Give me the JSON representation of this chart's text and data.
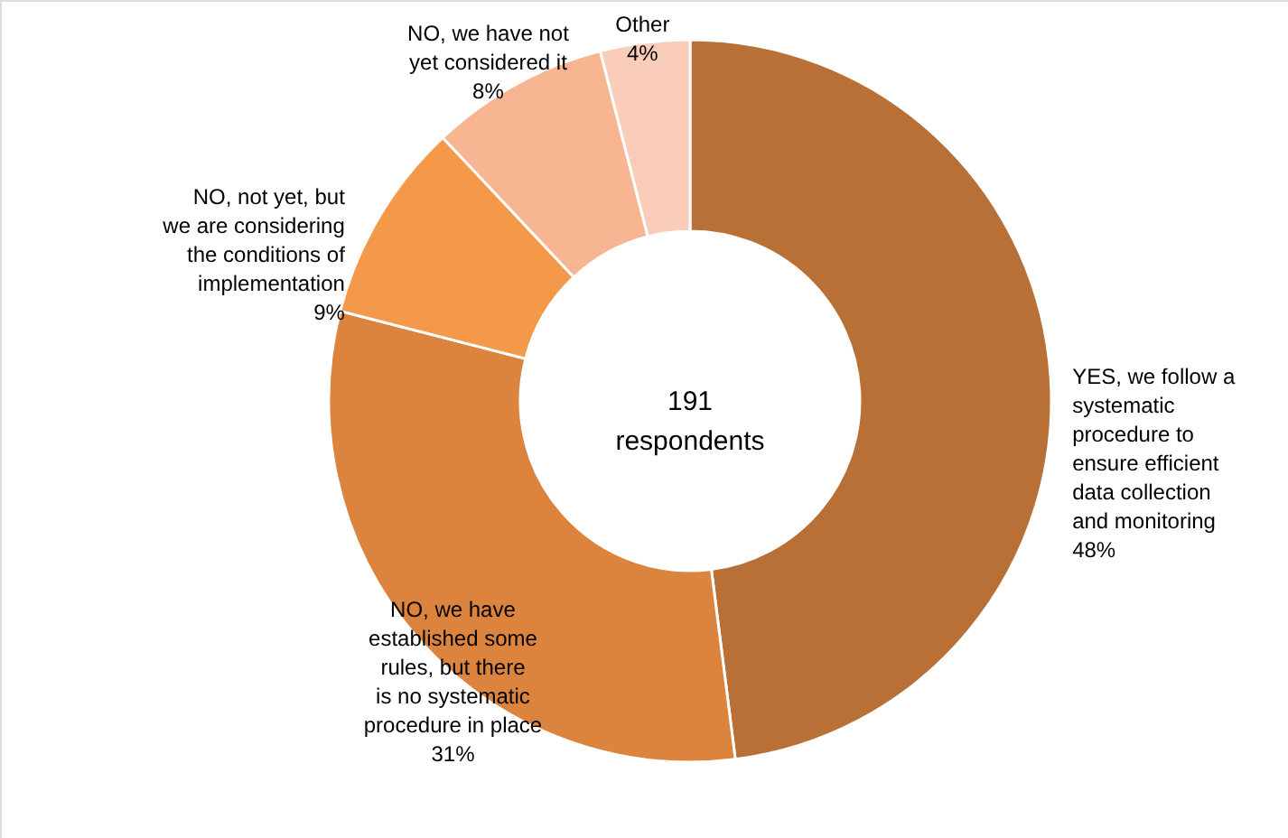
{
  "chart_data": {
    "type": "donut",
    "categories": [
      "YES, we follow a systematic procedure to ensure efficient data collection and monitoring",
      "NO, we have established some rules, but there is no systematic procedure in place",
      "NO, not yet, but we are considering the conditions of implementation",
      "NO, we have not yet considered it",
      "Other"
    ],
    "values": [
      48,
      31,
      9,
      8,
      4
    ],
    "colors": [
      "#b87036",
      "#dc833e",
      "#f4984a",
      "#f7b592",
      "#f9cdb9"
    ],
    "annotations": [
      "191 respondents"
    ],
    "value_labels": [
      "48%",
      "31%",
      "9%",
      "8%",
      "4%"
    ]
  }
}
